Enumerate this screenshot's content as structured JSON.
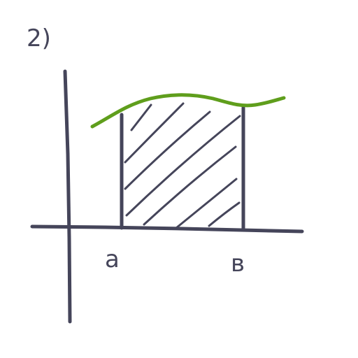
{
  "figure": {
    "number_label": "2)",
    "lower_limit_label": "a",
    "upper_limit_label": "в",
    "colors": {
      "ink": "#45455a",
      "curve": "#5f9e1c",
      "background": "#ffffff"
    }
  }
}
